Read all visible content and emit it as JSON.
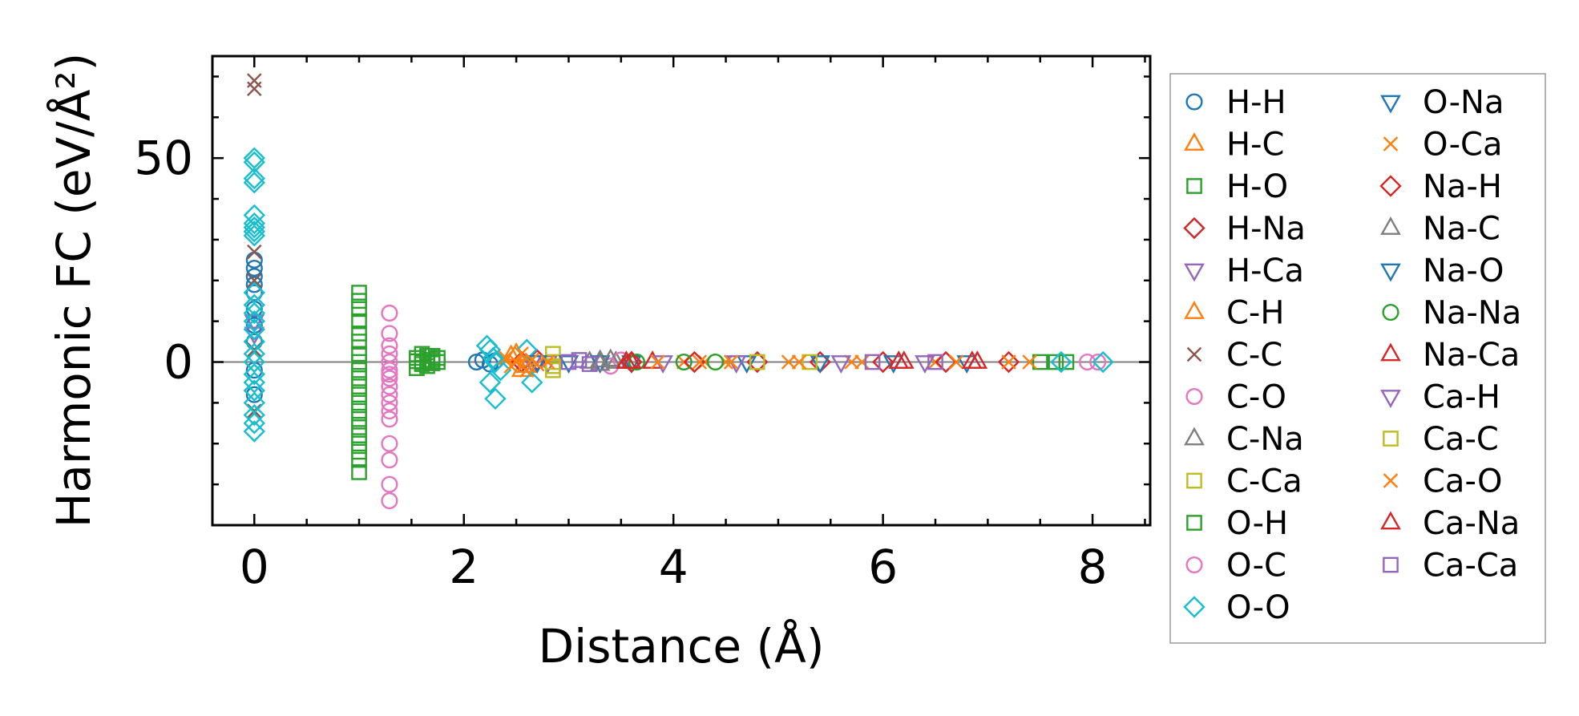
{
  "chart_data": {
    "type": "scatter",
    "xlabel": "Distance (Å)",
    "ylabel": "Harmonic FC (eV/Å²)",
    "xlim": [
      -0.4,
      8.55
    ],
    "ylim": [
      -40.0,
      75.0
    ],
    "xticks": [
      0,
      2,
      4,
      6,
      8
    ],
    "yticks": [
      0,
      50
    ],
    "x_tick_labels": [
      "0",
      "2",
      "4",
      "6",
      "8"
    ],
    "y_tick_labels": [
      "0",
      "50"
    ],
    "x_minor_step": 0.5,
    "y_minor_step": 10,
    "zero_line": true,
    "legend_position": "outside-right",
    "legend_columns": 2,
    "series": [
      {
        "name": "H-H",
        "color": "#1f77b4",
        "marker": "circle",
        "x": [
          0,
          0,
          0,
          0,
          0,
          0,
          0,
          0,
          0,
          0,
          2.12,
          2.18,
          2.25,
          2.3
        ],
        "y": [
          25,
          23,
          21,
          19,
          17,
          13,
          9,
          5,
          -2,
          -8,
          0,
          0.5,
          -0.5,
          0.3
        ]
      },
      {
        "name": "H-C",
        "color": "#ff7f0e",
        "marker": "triangle-up",
        "x": [
          2.45,
          2.55
        ],
        "y": [
          1.5,
          -2
        ]
      },
      {
        "name": "H-O",
        "color": "#2ca02c",
        "marker": "square",
        "x": [
          1.0,
          1.0,
          1.0,
          1.0,
          1.0,
          1.0,
          1.0,
          1.0,
          1.0,
          1.0,
          1.0,
          1.0,
          1.0,
          1.0,
          1.0,
          1.0,
          1.0,
          1.0,
          1.0,
          1.0,
          1.0
        ],
        "y": [
          17,
          15,
          13,
          10,
          7,
          5,
          2,
          0,
          -2,
          -4,
          -6,
          -8,
          -10,
          -12,
          -14,
          -16,
          -18,
          -20,
          -22,
          -24,
          -27
        ]
      },
      {
        "name": "H-Na",
        "color": "#d62728",
        "marker": "diamond",
        "x": [
          2.55,
          2.7
        ],
        "y": [
          0,
          0.5
        ]
      },
      {
        "name": "H-Ca",
        "color": "#9467bd",
        "marker": "triangle-down",
        "x": [
          0,
          0,
          2.65,
          2.8
        ],
        "y": [
          10,
          7,
          0,
          0
        ]
      },
      {
        "name": "C-H",
        "color": "#ff7f0e",
        "marker": "triangle-up",
        "x": [
          2.5,
          2.6
        ],
        "y": [
          2,
          -1
        ]
      },
      {
        "name": "C-C",
        "color": "#8c564b",
        "marker": "x",
        "x": [
          0,
          0,
          0,
          0,
          0,
          0
        ],
        "y": [
          67,
          69,
          27,
          20,
          3,
          -12
        ]
      },
      {
        "name": "C-O",
        "color": "#e377c2",
        "marker": "circle",
        "x": [
          1.29,
          1.29,
          1.29,
          1.29,
          1.29,
          1.29,
          1.29,
          1.29,
          1.29,
          1.29,
          1.29,
          1.29,
          1.29,
          1.29,
          1.29,
          1.29,
          1.29
        ],
        "y": [
          12,
          7,
          4,
          2,
          0,
          -2,
          -4,
          -6,
          -8,
          -10,
          -12,
          -14,
          -20,
          -24,
          -30,
          -34,
          -3
        ]
      },
      {
        "name": "C-Na",
        "color": "#7f7f7f",
        "marker": "triangle-up",
        "x": [
          3.2,
          3.3,
          3.45
        ],
        "y": [
          0,
          0.3,
          0
        ]
      },
      {
        "name": "C-Ca",
        "color": "#bcbd22",
        "marker": "square",
        "x": [
          2.85,
          2.85,
          2.85,
          2.85
        ],
        "y": [
          2,
          0,
          -1,
          -2
        ]
      },
      {
        "name": "O-H",
        "color": "#2ca02c",
        "marker": "square",
        "x": [
          1.55,
          1.6,
          1.65,
          1.7,
          1.75,
          1.6,
          1.65,
          1.7,
          1.55,
          1.75,
          1.65,
          1.7,
          1.6,
          1.55,
          7.5,
          7.65,
          7.75
        ],
        "y": [
          1,
          2,
          1.5,
          0.5,
          1,
          -0.5,
          -1,
          -0.3,
          -1.5,
          0,
          0.5,
          1.5,
          0,
          0.2,
          0,
          0,
          0
        ]
      },
      {
        "name": "O-C",
        "color": "#e377c2",
        "marker": "circle",
        "x": [
          3.4,
          3.5,
          7.95,
          8.05
        ],
        "y": [
          -1,
          0.5,
          0,
          0
        ]
      },
      {
        "name": "O-O",
        "color": "#17becf",
        "marker": "diamond",
        "x": [
          0,
          0,
          0,
          0,
          0,
          0,
          0,
          0,
          0,
          0,
          0,
          0,
          0,
          0,
          0,
          0,
          0,
          0,
          0,
          0,
          0,
          0,
          0,
          0,
          2.22,
          2.25,
          2.28,
          2.3,
          2.35,
          2.25,
          2.3,
          2.6,
          2.65,
          7.7,
          8.1
        ],
        "y": [
          50,
          49,
          45,
          44,
          36,
          34,
          33,
          32,
          31,
          17,
          14,
          12,
          10,
          8,
          5,
          2,
          0,
          -3,
          -5,
          -7,
          -10,
          -13,
          -15,
          -17,
          4,
          3,
          1,
          0,
          -2,
          -5,
          -9,
          3,
          -5,
          0,
          0
        ]
      },
      {
        "name": "O-Na",
        "color": "#1f77b4",
        "marker": "triangle-down",
        "x": [
          2.7,
          3.0,
          3.3,
          3.6
        ],
        "y": [
          0,
          0,
          0,
          0
        ]
      },
      {
        "name": "O-Ca",
        "color": "#ff7f0e",
        "marker": "x",
        "x": [
          2.4,
          2.45,
          2.5,
          2.55,
          2.6,
          2.65,
          2.7,
          2.8,
          4.1,
          4.3,
          4.5,
          5.1,
          5.7,
          6.5,
          7.4
        ],
        "y": [
          1,
          -1,
          0,
          2,
          -2,
          0.5,
          -0.5,
          0,
          0,
          0,
          0,
          0,
          0,
          0,
          0
        ]
      },
      {
        "name": "Na-H",
        "color": "#d62728",
        "marker": "diamond",
        "x": [
          3.6,
          4.2,
          4.8,
          5.4,
          6.0,
          6.6,
          7.2
        ],
        "y": [
          0,
          0,
          0,
          0,
          0,
          0,
          0
        ]
      },
      {
        "name": "Na-C",
        "color": "#7f7f7f",
        "marker": "triangle-up",
        "x": [
          3.3,
          3.4
        ],
        "y": [
          -0.5,
          0.5
        ]
      },
      {
        "name": "Na-O",
        "color": "#1f77b4",
        "marker": "triangle-down",
        "x": [
          4.7,
          5.4,
          6.1,
          6.8
        ],
        "y": [
          0,
          0,
          0,
          0
        ]
      },
      {
        "name": "Na-Na",
        "color": "#2ca02c",
        "marker": "circle",
        "x": [
          3.65,
          4.1,
          4.4
        ],
        "y": [
          0,
          0,
          0
        ]
      },
      {
        "name": "Na-Ca",
        "color": "#d62728",
        "marker": "triangle-up",
        "x": [
          3.55,
          3.8,
          6.2,
          6.9
        ],
        "y": [
          0,
          0,
          0,
          0
        ]
      },
      {
        "name": "Ca-H",
        "color": "#9467bd",
        "marker": "triangle-down",
        "x": [
          3.9,
          4.6,
          5.6,
          6.4
        ],
        "y": [
          0,
          0,
          0,
          0
        ]
      },
      {
        "name": "Ca-C",
        "color": "#bcbd22",
        "marker": "square",
        "x": [
          4.8,
          5.3
        ],
        "y": [
          0,
          0
        ]
      },
      {
        "name": "Ca-O",
        "color": "#ff7f0e",
        "marker": "x",
        "x": [
          3.85,
          4.25,
          4.55,
          5.2,
          5.8,
          6.7,
          7.2
        ],
        "y": [
          0,
          0,
          0,
          0,
          0,
          0,
          0
        ]
      },
      {
        "name": "Ca-Na",
        "color": "#d62728",
        "marker": "triangle-up",
        "x": [
          3.6,
          6.15,
          6.85
        ],
        "y": [
          0,
          0,
          0
        ]
      },
      {
        "name": "Ca-Ca",
        "color": "#9467bd",
        "marker": "square",
        "x": [
          3.0,
          3.1,
          3.2,
          5.9,
          6.5
        ],
        "y": [
          0,
          0.5,
          -0.5,
          0,
          0
        ]
      }
    ]
  }
}
